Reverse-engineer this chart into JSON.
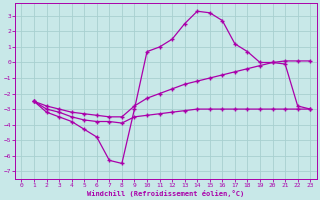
{
  "background_color": "#c8e8e8",
  "grid_color": "#a8d0d0",
  "line_color": "#aa00aa",
  "xlim": [
    -0.5,
    23.5
  ],
  "ylim": [
    -7.5,
    3.8
  ],
  "xlabel": "Windchill (Refroidissement éolien,°C)",
  "xticks": [
    0,
    1,
    2,
    3,
    4,
    5,
    6,
    7,
    8,
    9,
    10,
    11,
    12,
    13,
    14,
    15,
    16,
    17,
    18,
    19,
    20,
    21,
    22,
    23
  ],
  "yticks": [
    -7,
    -6,
    -5,
    -4,
    -3,
    -2,
    -1,
    0,
    1,
    2,
    3
  ],
  "line1_x": [
    1,
    2,
    3,
    4,
    5,
    6,
    7,
    8,
    9,
    10,
    11,
    12,
    13,
    14,
    15,
    16,
    17,
    18,
    19,
    20,
    21,
    22,
    23
  ],
  "line1_y": [
    -2.5,
    -3.0,
    -3.2,
    -3.5,
    -3.7,
    -3.8,
    -3.8,
    -3.9,
    -3.5,
    -3.4,
    -3.3,
    -3.2,
    -3.1,
    -3.0,
    -3.0,
    -3.0,
    -3.0,
    -3.0,
    -3.0,
    -3.0,
    -3.0,
    -3.0,
    -3.0
  ],
  "line2_x": [
    1,
    2,
    3,
    4,
    5,
    6,
    7,
    8,
    9,
    10,
    11,
    12,
    13,
    14,
    15,
    16,
    17,
    18,
    19,
    20,
    21,
    22,
    23
  ],
  "line2_y": [
    -2.5,
    -2.8,
    -3.0,
    -3.2,
    -3.3,
    -3.4,
    -3.5,
    -3.5,
    -2.8,
    -2.3,
    -2.0,
    -1.7,
    -1.4,
    -1.2,
    -1.0,
    -0.8,
    -0.6,
    -0.4,
    -0.2,
    0.0,
    0.1,
    0.1,
    0.1
  ],
  "line3_x": [
    1,
    2,
    3,
    4,
    5,
    6,
    7,
    8,
    9,
    10,
    11,
    12,
    13,
    14,
    15,
    16,
    17,
    18,
    19,
    20,
    21,
    22,
    23
  ],
  "line3_y": [
    -2.5,
    -3.2,
    -3.5,
    -3.8,
    -4.3,
    -4.8,
    -6.3,
    -6.5,
    -3.0,
    0.7,
    1.0,
    1.5,
    2.5,
    3.3,
    3.2,
    2.7,
    1.2,
    0.7,
    0.0,
    0.0,
    -0.1,
    -2.8,
    -3.0
  ]
}
